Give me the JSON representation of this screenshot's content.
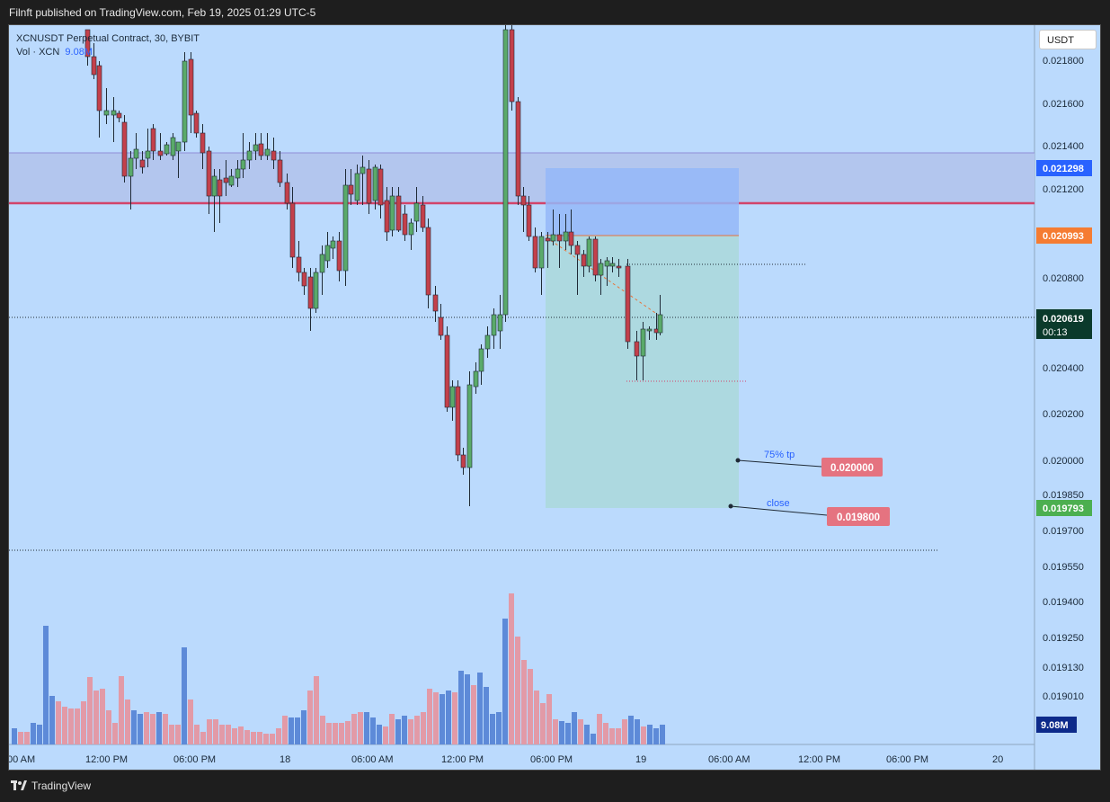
{
  "header": {
    "published": "Filnft published on TradingView.com, Feb 19, 2025 01:29 UTC-5"
  },
  "legend": {
    "symbol": "XCNUSDT Perpetual Contract, 30, BYBIT",
    "vol_label": "Vol · XCN",
    "vol_value": "9.08M"
  },
  "currency": "USDT",
  "price_scale": [
    "0.021800",
    "0.021600",
    "0.021400",
    "0.021200",
    "0.020800",
    "0.020400",
    "0.020200",
    "0.020000",
    "0.019850",
    "0.019700",
    "0.019550",
    "0.019400",
    "0.019250",
    "0.019130",
    "0.019010"
  ],
  "price_badges": {
    "box_top": "0.021298",
    "entry": "0.020993",
    "last": "0.020619",
    "countdown": "00:13",
    "box_bottom": "0.019793",
    "volume": "9.08M"
  },
  "time_axis": [
    "00 AM",
    "12:00 PM",
    "06:00 PM",
    "18",
    "06:00 AM",
    "12:00 PM",
    "06:00 PM",
    "19",
    "06:00 AM",
    "12:00 PM",
    "06:00 PM",
    "20"
  ],
  "annotations": [
    {
      "text": "75% tp",
      "price_label": "0.020000"
    },
    {
      "text": "close",
      "price_label": "0.019800"
    }
  ],
  "colors": {
    "background": "#bbdafd",
    "up_candle": "#5aaa6a",
    "down_candle": "#c3404b",
    "volume_up": "#5d8ad8",
    "volume_down": "#e29aa7",
    "resistance_line": "#d2446a",
    "target_zone": "#a8d8d5",
    "stop_zone": "#94b7f8"
  },
  "footer": {
    "brand": "TradingView"
  }
}
